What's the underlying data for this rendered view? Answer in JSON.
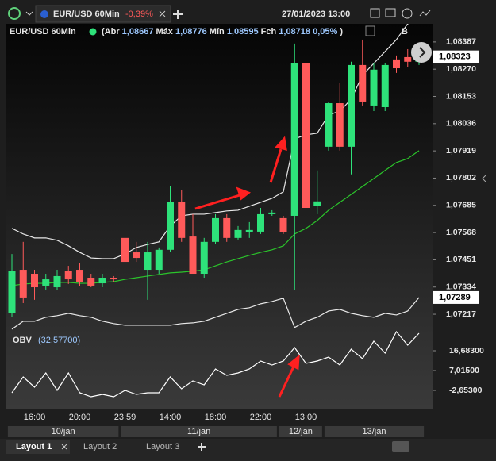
{
  "toolbar": {
    "tab_title": "EUR/USD 60Min",
    "tab_change": "-0,39%",
    "datetime": "27/01/2023 13:00"
  },
  "legend": {
    "symbol": "EUR/USD 60Min",
    "open_label": "(Abr",
    "open": "1,08667",
    "high_label": "Máx",
    "high": "1,08776",
    "low_label": "Mín",
    "low": "1,08595",
    "close_label": "Fch",
    "close": "1,08718",
    "change": "0,05%",
    "close_paren": ")",
    "more": "B"
  },
  "chart_data": {
    "type": "candlestick",
    "categories": [
      null,
      null,
      "16:00",
      null,
      null,
      null,
      "20:00",
      null,
      null,
      null,
      "23:59",
      null,
      null,
      null,
      "14:00",
      null,
      null,
      null,
      "18:00",
      null,
      null,
      null,
      "22:00",
      null,
      null,
      null,
      "13:00",
      null,
      null,
      null,
      null,
      null,
      null,
      null,
      null,
      null,
      null
    ],
    "date_groups": [
      {
        "label": "10/jan",
        "count": 10
      },
      {
        "label": "11/jan",
        "count": 14
      },
      {
        "label": "12/jan",
        "count": 4
      },
      {
        "label": "13/jan",
        "count": 9
      }
    ],
    "open": [
      1.07221,
      1.07408,
      1.07391,
      1.0734,
      1.07333,
      1.07402,
      1.07408,
      1.07374,
      1.0735,
      1.07374,
      1.07545,
      1.07483,
      1.07408,
      1.07408,
      1.07494,
      1.07698,
      1.07551,
      1.07391,
      1.07528,
      1.0763,
      1.07545,
      1.07569,
      1.07572,
      1.07647,
      1.0763,
      1.0764,
      1.08295,
      1.07681,
      1.07937,
      1.08124,
      1.07937,
      1.08288,
      1.08114,
      1.08107,
      1.08312,
      1.08322,
      1.08302
    ],
    "high": [
      1.07476,
      1.07528,
      1.07408,
      1.07391,
      1.07408,
      1.07425,
      1.07436,
      1.07391,
      1.07391,
      1.07381,
      1.07562,
      1.07528,
      1.07528,
      1.07504,
      1.07766,
      1.07749,
      1.07647,
      1.07545,
      1.07647,
      1.07647,
      1.07596,
      1.07613,
      1.07674,
      1.07664,
      1.0764,
      1.0838,
      1.08414,
      1.07835,
      1.08131,
      1.0821,
      1.08302,
      1.08397,
      1.08295,
      1.08295,
      1.08329,
      1.08356,
      1.0838
    ],
    "low": [
      1.07204,
      1.07265,
      1.07279,
      1.07323,
      1.0732,
      1.07347,
      1.0734,
      1.07333,
      1.07333,
      1.07354,
      1.07425,
      1.07442,
      1.07279,
      1.07391,
      1.07483,
      1.07528,
      1.07391,
      1.07374,
      1.07517,
      1.07528,
      1.07538,
      1.07545,
      1.07562,
      1.0764,
      1.07562,
      1.07323,
      1.07517,
      1.07647,
      1.0792,
      1.0792,
      1.07818,
      1.08114,
      1.0809,
      1.0809,
      1.08254,
      1.08278,
      1.08288
    ],
    "close": [
      1.07402,
      1.07289,
      1.07333,
      1.07367,
      1.07381,
      1.07367,
      1.07357,
      1.0734,
      1.07374,
      1.07367,
      1.07442,
      1.07459,
      1.07483,
      1.07494,
      1.07698,
      1.07545,
      1.07391,
      1.07528,
      1.0763,
      1.07545,
      1.07579,
      1.07579,
      1.07647,
      1.07654,
      1.07569,
      1.08295,
      1.07674,
      1.07702,
      1.08124,
      1.07937,
      1.08288,
      1.08131,
      1.08268,
      1.08288,
      1.08274,
      1.08302,
      1.08356
    ],
    "up_color": "#2ee27a",
    "down_color": "#ff5a5a",
    "upper_band": {
      "color": "#e8e8e8",
      "values": [
        1.07586,
        1.07562,
        1.07545,
        1.07545,
        1.07535,
        1.07511,
        1.07483,
        1.07459,
        1.07456,
        1.07456,
        1.07476,
        1.07504,
        1.07517,
        1.07528,
        1.07596,
        1.0764,
        1.07647,
        1.07647,
        1.07654,
        1.07661,
        1.07664,
        1.07681,
        1.07698,
        1.07715,
        1.07743,
        1.07971,
        1.07988,
        1.07995,
        1.08073,
        1.0809,
        1.08141,
        1.08244,
        1.08295,
        1.08346,
        1.08397,
        1.08465,
        1.08482
      ]
    },
    "lower_band": {
      "color": "#e8e8e8",
      "values": [
        1.07153,
        1.07187,
        1.07187,
        1.07204,
        1.07211,
        1.07221,
        1.07211,
        1.07204,
        1.07187,
        1.07177,
        1.0717,
        1.0717,
        1.0717,
        1.0717,
        1.0717,
        1.07177,
        1.0718,
        1.07187,
        1.07204,
        1.07221,
        1.07238,
        1.07245,
        1.07262,
        1.07272,
        1.07286,
        1.0716,
        1.07187,
        1.07204,
        1.07231,
        1.07238,
        1.07221,
        1.07211,
        1.07204,
        1.07221,
        1.07214,
        1.07231,
        1.07289
      ]
    },
    "ma": {
      "color": "#2bc42b",
      "values": [
        1.0734,
        1.07347,
        1.0735,
        1.0735,
        1.07354,
        1.07354,
        1.0735,
        1.0735,
        1.07354,
        1.07357,
        1.07367,
        1.07374,
        1.07381,
        1.07388,
        1.07395,
        1.07398,
        1.07402,
        1.07408,
        1.07425,
        1.07442,
        1.07456,
        1.0747,
        1.07483,
        1.07494,
        1.07511,
        1.07562,
        1.07586,
        1.0762,
        1.07664,
        1.07698,
        1.07732,
        1.07766,
        1.078,
        1.07835,
        1.07869,
        1.07886,
        1.0792
      ]
    },
    "ylim": [
      1.07149,
      1.08465
    ],
    "yticks": [
      {
        "value": 1.08387,
        "label": "1,08387"
      },
      {
        "value": 1.0827,
        "label": "1,08270"
      },
      {
        "value": 1.08153,
        "label": "1,08153"
      },
      {
        "value": 1.08036,
        "label": "1,08036"
      },
      {
        "value": 1.07919,
        "label": "1,07919"
      },
      {
        "value": 1.07802,
        "label": "1,07802"
      },
      {
        "value": 1.07685,
        "label": "1,07685"
      },
      {
        "value": 1.07568,
        "label": "1,07568"
      },
      {
        "value": 1.07451,
        "label": "1,07451"
      },
      {
        "value": 1.07334,
        "label": "1,07334"
      },
      {
        "value": 1.07217,
        "label": "1,07217"
      }
    ],
    "last_price": {
      "value": 1.08323,
      "label": "1,08323"
    },
    "band_last": {
      "value": 1.07289,
      "label": "1,07289"
    },
    "obv": {
      "name": "OBV",
      "value_text": "(32,57700)",
      "color": "#ffffff",
      "values": [
        -3.81,
        3.92,
        -1.1,
        5.86,
        -2.65,
        5.86,
        -3.81,
        -5.75,
        -4.59,
        -5.75,
        -2.65,
        -4.59,
        -3.81,
        -3.81,
        3.92,
        -1.88,
        1.99,
        0.05,
        7.79,
        4.7,
        5.86,
        7.79,
        11.66,
        9.72,
        11.66,
        18.23,
        10.5,
        11.66,
        13.59,
        9.72,
        17.46,
        12.82,
        21.32,
        15.52,
        25.96,
        19.39,
        25.19
      ],
      "ylim": [
        -11.55,
        26.74
      ],
      "yticks": [
        {
          "value": 16.683,
          "label": "16,68300"
        },
        {
          "value": 7.015,
          "label": "7,01500"
        },
        {
          "value": -2.653,
          "label": "-2,65300"
        }
      ]
    }
  },
  "tabs": [
    "Layout 1",
    "Layout 2",
    "Layout 3"
  ]
}
